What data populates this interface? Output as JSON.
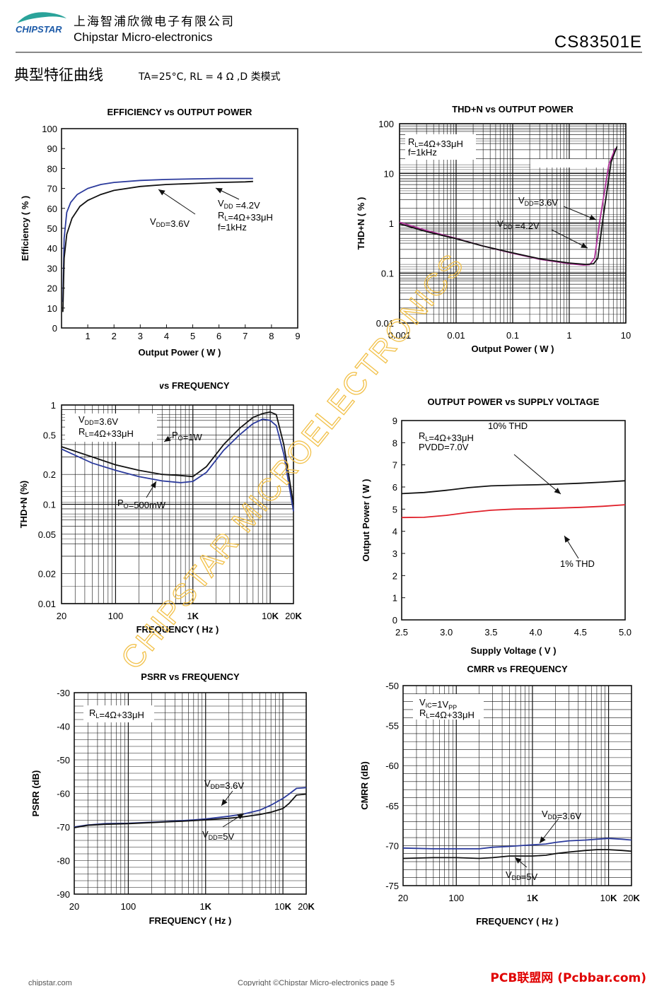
{
  "header": {
    "logo_text": "CHIPSTAR",
    "company_cn": "上海智浦欣微电子有限公司",
    "company_en": "Chipstar Micro-electronics",
    "part_number": "CS83501E",
    "section_title": "典型特征曲线",
    "conditions": "TA=25°C, RL = 4 Ω ,D 类模式"
  },
  "watermark": "CHIPSTAR MICROELECTRONICS",
  "footer": {
    "left": "chipstar.com",
    "center": "Copyright ©Chipstar Micro-electronics    page 5",
    "site": "PCB联盟网 (Pcbbar.com)"
  },
  "colors": {
    "blue": "#2b3a9c",
    "black": "#111111",
    "red": "#e0202a",
    "magenta": "#b0309a",
    "watermark": "#f2c14a",
    "logo": "#1c5aa8"
  },
  "chart_data": [
    {
      "id": "eff",
      "type": "line",
      "title": "EFFICIENCY vs OUTPUT POWER",
      "xlabel": "Output Power ( W )",
      "ylabel": "Efficiency ( % )",
      "xscale": "linear",
      "yscale": "linear",
      "xlim": [
        0,
        9
      ],
      "ylim": [
        0,
        100
      ],
      "xticks": [
        1,
        2,
        3,
        4,
        5,
        6,
        7,
        8,
        9
      ],
      "yticks": [
        0,
        10,
        20,
        30,
        40,
        50,
        60,
        70,
        80,
        90,
        100
      ],
      "grid": false,
      "series": [
        {
          "color": "blue",
          "x": [
            0.05,
            0.1,
            0.2,
            0.35,
            0.6,
            1.0,
            1.5,
            2.0,
            3.0,
            4.0,
            5.0,
            6.0,
            7.0,
            7.3
          ],
          "y": [
            13,
            45,
            58,
            63,
            67,
            70,
            72,
            73,
            74,
            74.5,
            74.8,
            75,
            75,
            75
          ]
        },
        {
          "color": "black",
          "x": [
            0.05,
            0.1,
            0.2,
            0.4,
            0.7,
            1.0,
            1.5,
            2.0,
            3.0,
            4.0,
            5.0,
            6.0,
            7.0,
            7.3
          ],
          "y": [
            8,
            35,
            47,
            55,
            61,
            64,
            67,
            69,
            71,
            72,
            72.5,
            73,
            73.3,
            73.5
          ]
        }
      ],
      "annotations": [
        {
          "text": "VDD=3.6V",
          "parts": [
            [
              "V",
              ""
            ],
            [
              "DD",
              "sub"
            ],
            [
              "=3.6V",
              ""
            ]
          ]
        },
        {
          "text": "VDD =4.2V",
          "parts": [
            [
              "V",
              ""
            ],
            [
              "DD",
              "sub"
            ],
            [
              " =4.2V",
              ""
            ]
          ]
        },
        {
          "text": "RL=4Ω+33μH",
          "parts": [
            [
              "R",
              ""
            ],
            [
              "L",
              "sub"
            ],
            [
              "=4Ω+33μH",
              ""
            ]
          ]
        },
        {
          "text": "f=1kHz",
          "parts": [
            [
              "f=1kHz",
              ""
            ]
          ]
        }
      ]
    },
    {
      "id": "thdp",
      "type": "line",
      "title": "THD+N vs OUTPUT POWER",
      "xlabel": "Output Power ( W )",
      "ylabel": "THD+N ( % )",
      "xscale": "log",
      "yscale": "log",
      "xlim": [
        0.001,
        10
      ],
      "ylim": [
        0.01,
        100
      ],
      "xtick_labels": [
        "0.001",
        "0.01",
        "0.1",
        "1",
        "10"
      ],
      "ytick_labels": [
        "0.01",
        "0.1",
        "1",
        "10",
        "100"
      ],
      "grid": true,
      "series": [
        {
          "color": "magenta",
          "x": [
            0.001,
            0.003,
            0.01,
            0.03,
            0.1,
            0.3,
            1,
            1.8,
            2.3,
            2.8,
            3.5,
            5,
            6.5
          ],
          "y": [
            1.05,
            0.72,
            0.5,
            0.35,
            0.25,
            0.19,
            0.155,
            0.145,
            0.148,
            0.2,
            1.2,
            15,
            32
          ]
        },
        {
          "color": "black",
          "x": [
            0.001,
            0.003,
            0.01,
            0.03,
            0.1,
            0.3,
            1,
            2.0,
            2.7,
            3.2,
            4,
            5.5,
            7
          ],
          "y": [
            0.98,
            0.68,
            0.49,
            0.35,
            0.255,
            0.195,
            0.16,
            0.15,
            0.155,
            0.2,
            1.4,
            17,
            35
          ]
        }
      ],
      "annotations": [
        {
          "text": "RL=4Ω+33μH",
          "parts": [
            [
              "R",
              ""
            ],
            [
              "L",
              "sub"
            ],
            [
              "=4Ω+33μH",
              ""
            ]
          ]
        },
        {
          "text": "f=1kHz",
          "parts": [
            [
              "f=1kHz",
              ""
            ]
          ]
        },
        {
          "text": "VDD=3.6V",
          "parts": [
            [
              "V",
              ""
            ],
            [
              "DD",
              "sub"
            ],
            [
              "=3.6V",
              ""
            ]
          ]
        },
        {
          "text": "VDD =4.2V",
          "parts": [
            [
              "V",
              ""
            ],
            [
              "DD",
              "sub"
            ],
            [
              " =4.2V",
              ""
            ]
          ]
        }
      ]
    },
    {
      "id": "thdf",
      "type": "line",
      "title": "THD+N vs FREQUENCY",
      "xlabel": "FREQUENCY ( Hz )",
      "ylabel": "THD+N (%)",
      "xscale": "log",
      "yscale": "log",
      "xlim": [
        20,
        20000
      ],
      "ylim": [
        0.01,
        1
      ],
      "xtick_labels": [
        "20",
        "100",
        "1K",
        "10K",
        "20K"
      ],
      "ytick_labels": [
        "1",
        "0.5",
        "0.2",
        "0.1",
        "0.05",
        "0.02",
        "0.01"
      ],
      "grid": true,
      "series": [
        {
          "color": "black",
          "x": [
            20,
            50,
            100,
            200,
            400,
            700,
            1000,
            1500,
            2500,
            4000,
            6000,
            8000,
            10000,
            12000,
            15000,
            20000
          ],
          "y": [
            0.38,
            0.3,
            0.25,
            0.22,
            0.2,
            0.195,
            0.19,
            0.24,
            0.4,
            0.58,
            0.75,
            0.82,
            0.85,
            0.8,
            0.4,
            0.1
          ]
        },
        {
          "color": "blue",
          "x": [
            20,
            50,
            100,
            200,
            400,
            700,
            1000,
            1500,
            2500,
            4000,
            6000,
            8000,
            10000,
            12000,
            15000,
            20000
          ],
          "y": [
            0.36,
            0.26,
            0.22,
            0.19,
            0.172,
            0.165,
            0.17,
            0.21,
            0.35,
            0.5,
            0.65,
            0.72,
            0.7,
            0.62,
            0.32,
            0.085
          ]
        }
      ],
      "annotations": [
        {
          "text": "VDD=3.6V",
          "parts": [
            [
              "V",
              ""
            ],
            [
              "DD",
              "sub"
            ],
            [
              "=3.6V",
              ""
            ]
          ]
        },
        {
          "text": "RL=4Ω+33μH",
          "parts": [
            [
              "R",
              ""
            ],
            [
              "L",
              "sub"
            ],
            [
              "=4Ω+33μH",
              ""
            ]
          ]
        },
        {
          "text": "PO=1W",
          "parts": [
            [
              "P",
              ""
            ],
            [
              "O",
              "sub"
            ],
            [
              "=1W",
              ""
            ]
          ]
        },
        {
          "text": "PO=500mW",
          "parts": [
            [
              "P",
              ""
            ],
            [
              "O",
              "sub"
            ],
            [
              "=500mW",
              ""
            ]
          ]
        }
      ]
    },
    {
      "id": "pvsv",
      "type": "line",
      "title": "OUTPUT POWER vs SUPPLY VOLTAGE",
      "xlabel": "Supply Voltage ( V )",
      "ylabel": "Output Power ( W )",
      "xscale": "linear",
      "yscale": "linear",
      "xlim": [
        2.5,
        5.0
      ],
      "ylim": [
        0,
        9
      ],
      "xtick_labels": [
        "2.5",
        "3.0",
        "3.5",
        "4.0",
        "4.5",
        "5.0"
      ],
      "yticks": [
        0,
        1,
        2,
        3,
        4,
        5,
        6,
        7,
        8,
        9
      ],
      "grid": false,
      "series": [
        {
          "color": "black",
          "x": [
            2.5,
            2.75,
            3.0,
            3.25,
            3.5,
            3.75,
            4.0,
            4.25,
            4.5,
            4.75,
            5.0
          ],
          "y": [
            5.7,
            5.75,
            5.85,
            5.97,
            6.05,
            6.08,
            6.1,
            6.13,
            6.17,
            6.22,
            6.28
          ]
        },
        {
          "color": "red",
          "x": [
            2.5,
            2.75,
            3.0,
            3.25,
            3.5,
            3.75,
            4.0,
            4.25,
            4.5,
            4.75,
            5.0
          ],
          "y": [
            4.62,
            4.63,
            4.72,
            4.85,
            4.95,
            5.0,
            5.02,
            5.05,
            5.08,
            5.13,
            5.2
          ]
        }
      ],
      "annotations": [
        {
          "text": "RL=4Ω+33μH",
          "parts": [
            [
              "R",
              ""
            ],
            [
              "L",
              "sub"
            ],
            [
              "=4Ω+33μH",
              ""
            ]
          ]
        },
        {
          "text": "PVDD=7.0V",
          "parts": [
            [
              "PVDD=7.0V",
              ""
            ]
          ]
        },
        {
          "text": "10% THD",
          "parts": [
            [
              "10% THD",
              ""
            ]
          ]
        },
        {
          "text": "1% THD",
          "parts": [
            [
              "1% THD",
              ""
            ]
          ]
        }
      ]
    },
    {
      "id": "psrr",
      "type": "line",
      "title": "PSRR vs FREQUENCY",
      "xlabel": "FREQUENCY ( Hz )",
      "ylabel": "PSRR (dB)",
      "xscale": "log",
      "yscale": "linear",
      "xlim": [
        20,
        20000
      ],
      "ylim": [
        -90,
        -30
      ],
      "xtick_labels": [
        "20",
        "100",
        "1K",
        "10K",
        "20K"
      ],
      "yticks": [
        -30,
        -40,
        -50,
        -60,
        -70,
        -80,
        -90
      ],
      "grid": true,
      "series": [
        {
          "color": "blue",
          "x": [
            20,
            30,
            50,
            100,
            200,
            300,
            500,
            700,
            1000,
            2000,
            3000,
            5000,
            7000,
            10000,
            12000,
            15000,
            20000
          ],
          "y": [
            -70,
            -69.4,
            -69,
            -68.9,
            -68.6,
            -68.4,
            -68.1,
            -67.9,
            -67.6,
            -66.8,
            -66.2,
            -65,
            -63.5,
            -61.5,
            -60.2,
            -58.5,
            -58.3
          ]
        },
        {
          "color": "black",
          "x": [
            20,
            30,
            50,
            100,
            200,
            300,
            500,
            700,
            1000,
            2000,
            3000,
            5000,
            7000,
            10000,
            12000,
            15000,
            20000
          ],
          "y": [
            -70.2,
            -69.5,
            -69.2,
            -69,
            -68.7,
            -68.5,
            -68.3,
            -68.1,
            -67.9,
            -67.4,
            -67,
            -66.3,
            -65.6,
            -64.5,
            -63,
            -60.5,
            -60.2
          ]
        }
      ],
      "annotations": [
        {
          "text": "RL=4Ω+33μH",
          "parts": [
            [
              "R",
              ""
            ],
            [
              "L",
              "sub"
            ],
            [
              "=4Ω+33μH",
              ""
            ]
          ]
        },
        {
          "text": "VDD=3.6V",
          "parts": [
            [
              "V",
              ""
            ],
            [
              "DD",
              "sub"
            ],
            [
              "=3.6V",
              ""
            ]
          ]
        },
        {
          "text": "VDD=5V",
          "parts": [
            [
              "V",
              ""
            ],
            [
              "DD",
              "sub"
            ],
            [
              "=5V",
              ""
            ]
          ]
        }
      ]
    },
    {
      "id": "cmrr",
      "type": "line",
      "title": "CMRR vs FREQUENCY",
      "xlabel": "FREQUENCY ( Hz )",
      "ylabel": "CMRR (dB)",
      "xscale": "log",
      "yscale": "linear",
      "xlim": [
        20,
        20000
      ],
      "ylim": [
        -75,
        -50
      ],
      "xtick_labels": [
        "20",
        "100",
        "1K",
        "10K",
        "20K"
      ],
      "yticks": [
        -50,
        -55,
        -60,
        -65,
        -70,
        -75
      ],
      "grid": true,
      "series": [
        {
          "color": "blue",
          "x": [
            20,
            50,
            100,
            200,
            300,
            500,
            700,
            1000,
            1500,
            2000,
            3000,
            5000,
            7000,
            10000,
            15000,
            20000
          ],
          "y": [
            -70.3,
            -70.4,
            -70.4,
            -70.4,
            -70.2,
            -70.1,
            -70,
            -69.9,
            -69.8,
            -69.6,
            -69.4,
            -69.3,
            -69.2,
            -69.1,
            -69.2,
            -69.3
          ]
        },
        {
          "color": "black",
          "x": [
            20,
            50,
            100,
            200,
            300,
            500,
            700,
            1000,
            1500,
            2000,
            3000,
            5000,
            7000,
            10000,
            15000,
            20000
          ],
          "y": [
            -71.6,
            -71.5,
            -71.5,
            -71.6,
            -71.5,
            -71.3,
            -71.3,
            -71.3,
            -71.2,
            -71,
            -70.8,
            -70.6,
            -70.5,
            -70.5,
            -70.6,
            -70.7
          ]
        }
      ],
      "annotations": [
        {
          "text": "VIC=1VPP",
          "parts": [
            [
              "V",
              ""
            ],
            [
              "IC",
              "sub"
            ],
            [
              "=1V",
              ""
            ],
            [
              "PP",
              "sub"
            ]
          ]
        },
        {
          "text": "RL=4Ω+33μH",
          "parts": [
            [
              "R",
              ""
            ],
            [
              "L",
              "sub"
            ],
            [
              "=4Ω+33μH",
              ""
            ]
          ]
        },
        {
          "text": "VDD=3.6V",
          "parts": [
            [
              "V",
              ""
            ],
            [
              "DD",
              "sub"
            ],
            [
              "=3.6V",
              ""
            ]
          ]
        },
        {
          "text": "VDD=5V",
          "parts": [
            [
              "V",
              ""
            ],
            [
              "DD",
              "sub"
            ],
            [
              "=5V",
              ""
            ]
          ]
        }
      ]
    }
  ]
}
